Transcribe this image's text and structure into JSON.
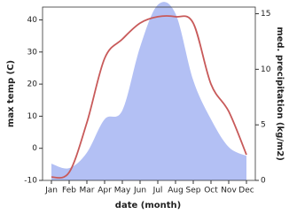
{
  "chart_data": {
    "type": "line",
    "x_label": "date (month)",
    "y_label": "max temp (C)",
    "y2_label": "med. precipitation (kg/m2)",
    "categories": [
      "Jan",
      "Feb",
      "Mar",
      "Apr",
      "May",
      "Jun",
      "Jul",
      "Aug",
      "Sep",
      "Oct",
      "Nov",
      "Dec"
    ],
    "series": [
      {
        "name": "med. precipitation",
        "style": "area",
        "axis": "y2",
        "color": "#b3c0f4",
        "values": [
          1.5,
          1.1,
          2.5,
          5.5,
          6.3,
          12,
          15.8,
          15,
          9,
          5.5,
          3,
          2.2
        ]
      },
      {
        "name": "max temp",
        "style": "line",
        "color": "#c85a5a",
        "values": [
          -9,
          -7.5,
          8,
          28,
          34,
          39,
          41,
          41,
          39,
          20,
          11.5,
          -2
        ]
      }
    ],
    "ylim": [
      -10,
      44
    ],
    "yticks": [
      -10,
      0,
      10,
      20,
      30,
      40
    ],
    "y2lim": [
      0,
      15.6
    ],
    "y2ticks": [
      0,
      5,
      10,
      15
    ]
  }
}
